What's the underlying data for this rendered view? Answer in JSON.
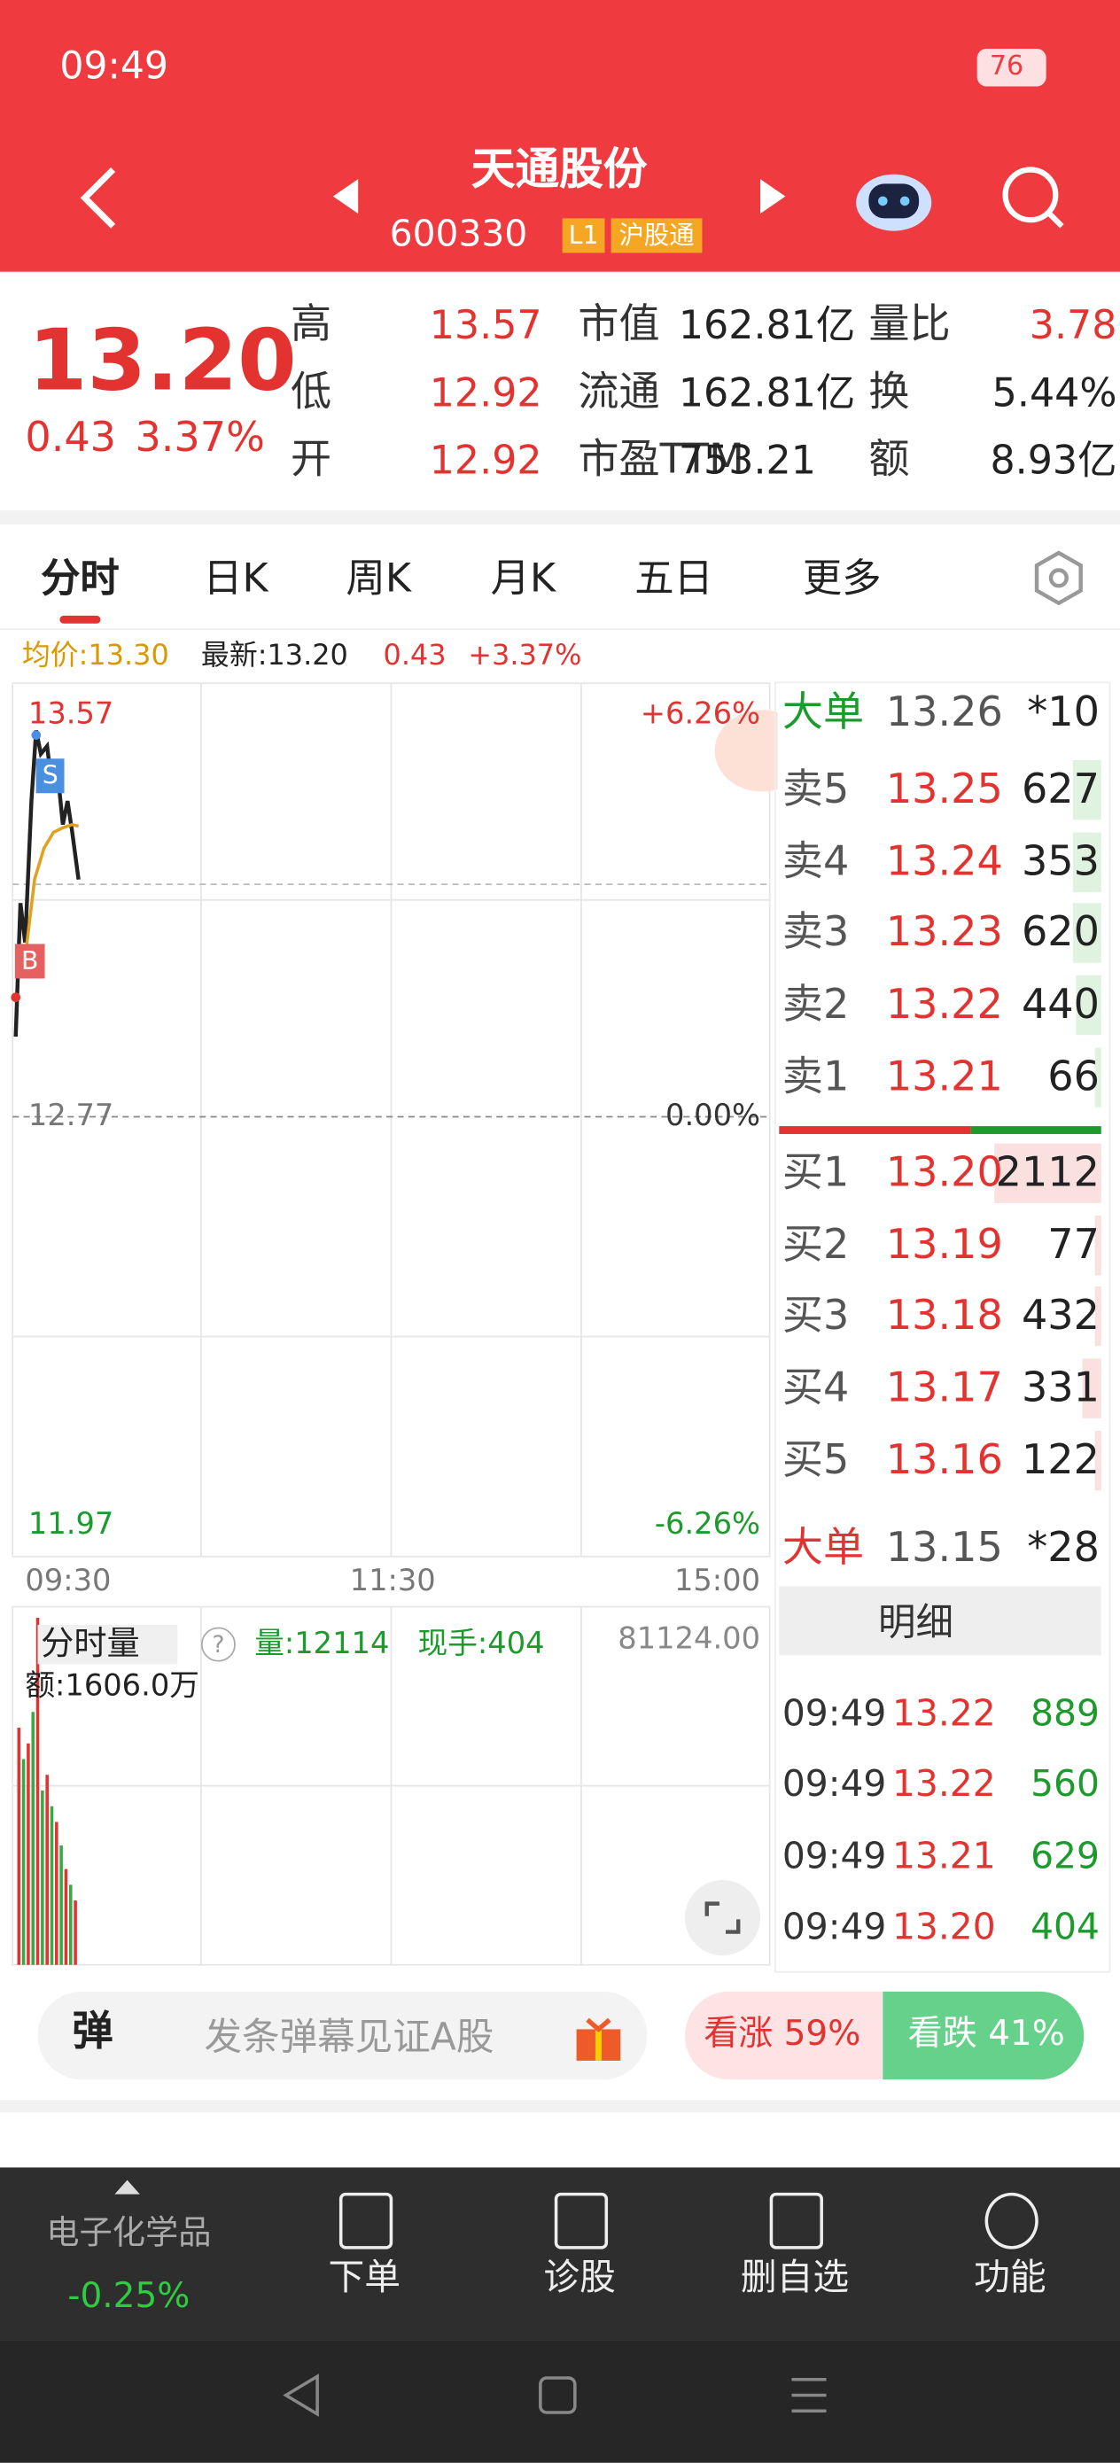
{
  "status": {
    "time": "09:49",
    "battery": "76"
  },
  "header": {
    "title": "天通股份",
    "code": "600330",
    "tags": [
      "L1",
      "沪股通"
    ]
  },
  "quote": {
    "price": "13.20",
    "change": "0.43",
    "change_pct": "3.37%",
    "stats": [
      {
        "label": "高",
        "value": "13.57"
      },
      {
        "label": "市值",
        "value": "162.81亿"
      },
      {
        "label": "量比",
        "value": "3.78"
      },
      {
        "label": "低",
        "value": "12.92"
      },
      {
        "label": "流通",
        "value": "162.81亿"
      },
      {
        "label": "换",
        "value": "5.44%"
      },
      {
        "label": "开",
        "value": "12.92"
      },
      {
        "label": "市盈TTM",
        "value": "753.21"
      },
      {
        "label": "额",
        "value": "8.93亿"
      }
    ]
  },
  "tabs": [
    "分时",
    "日K",
    "周K",
    "月K",
    "五日",
    "更多"
  ],
  "info": {
    "avg": "均价:13.30",
    "latest": "最新:13.20",
    "change": "0.43",
    "change_pct": "+3.37%"
  },
  "chart": {
    "high": "13.57",
    "high_pct": "+6.26%",
    "base": "12.77",
    "base_pct": "0.00%",
    "low": "11.97",
    "low_pct": "-6.26%",
    "times": [
      "09:30",
      "11:30",
      "15:00"
    ],
    "buy_marker": "B",
    "sell_marker": "S"
  },
  "order_book": {
    "big_top": {
      "label": "大单",
      "price": "13.26",
      "volume": "*10"
    },
    "asks": [
      {
        "label": "卖5",
        "price": "13.25",
        "volume": "627"
      },
      {
        "label": "卖4",
        "price": "13.24",
        "volume": "353"
      },
      {
        "label": "卖3",
        "price": "13.23",
        "volume": "620"
      },
      {
        "label": "卖2",
        "price": "13.22",
        "volume": "440"
      },
      {
        "label": "卖1",
        "price": "13.21",
        "volume": "66"
      }
    ],
    "bids": [
      {
        "label": "买1",
        "price": "13.20",
        "volume": "2112"
      },
      {
        "label": "买2",
        "price": "13.19",
        "volume": "77"
      },
      {
        "label": "买3",
        "price": "13.18",
        "volume": "432"
      },
      {
        "label": "买4",
        "price": "13.17",
        "volume": "331"
      },
      {
        "label": "买5",
        "price": "13.16",
        "volume": "122"
      }
    ],
    "big_bottom": {
      "label": "大单",
      "price": "13.15",
      "volume": "*28"
    },
    "detail": "明细",
    "trades": [
      {
        "time": "09:49",
        "price": "13.22",
        "volume": "889"
      },
      {
        "time": "09:49",
        "price": "13.22",
        "volume": "560"
      },
      {
        "time": "09:49",
        "price": "13.21",
        "volume": "629"
      },
      {
        "time": "09:49",
        "price": "13.20",
        "volume": "404"
      }
    ]
  },
  "volume": {
    "title": "分时量",
    "qty": "量:12114",
    "hand": "现手:404",
    "max": "81124.00",
    "amount": "额:1606.0万"
  },
  "barrage": {
    "icon": "弹",
    "placeholder": "发条弹幕见证A股",
    "up": "看涨 59%",
    "down": "看跌 41%"
  },
  "bottom_nav": {
    "sector": "电子化学品",
    "sector_change": "-0.25%",
    "items": [
      "下单",
      "诊股",
      "删自选",
      "功能"
    ]
  }
}
